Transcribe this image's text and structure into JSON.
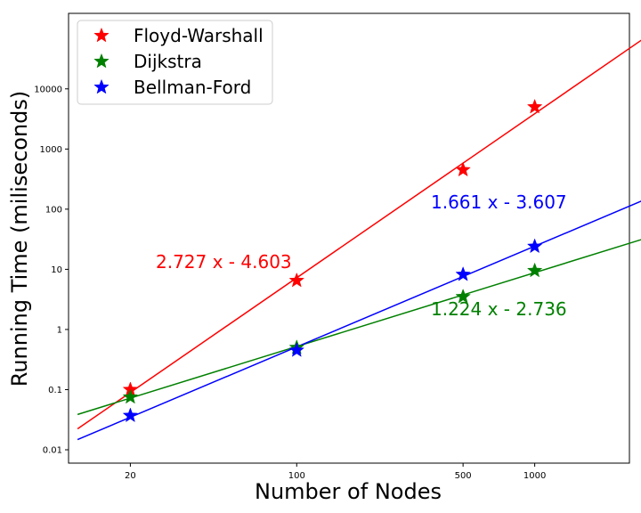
{
  "chart_data": {
    "type": "scatter",
    "xscale": "log",
    "yscale": "log",
    "xlabel": "Number of Nodes",
    "ylabel": "Running Time (miliseconds)",
    "xticks": [
      20,
      100,
      500,
      1000
    ],
    "yticks": [
      0.01,
      0.1,
      1,
      10,
      100,
      1000,
      10000
    ],
    "xlim": [
      11,
      2500
    ],
    "ylim": [
      0.006,
      180000
    ],
    "grid": false,
    "legend_position": "top-left",
    "series": [
      {
        "name": "Floyd-Warshall",
        "color": "#ff0000",
        "points": [
          {
            "x": 20,
            "y": 0.1
          },
          {
            "x": 100,
            "y": 6.5
          },
          {
            "x": 500,
            "y": 450
          },
          {
            "x": 1000,
            "y": 5000
          }
        ],
        "fit": {
          "slope": 2.727,
          "intercept": -4.603,
          "label": "2.727 x - 4.603"
        }
      },
      {
        "name": "Dijkstra",
        "color": "#008000",
        "points": [
          {
            "x": 20,
            "y": 0.075
          },
          {
            "x": 100,
            "y": 0.5
          },
          {
            "x": 500,
            "y": 3.5
          },
          {
            "x": 1000,
            "y": 9.5
          }
        ],
        "fit": {
          "slope": 1.224,
          "intercept": -2.736,
          "label": "1.224 x - 2.736"
        }
      },
      {
        "name": "Bellman-Ford",
        "color": "#0000ff",
        "points": [
          {
            "x": 20,
            "y": 0.037
          },
          {
            "x": 100,
            "y": 0.45
          },
          {
            "x": 500,
            "y": 8.2
          },
          {
            "x": 1000,
            "y": 24
          }
        ],
        "fit": {
          "slope": 1.661,
          "intercept": -3.607,
          "label": "1.661 x - 3.607"
        }
      }
    ],
    "fit_x_range": [
      12,
      3300
    ]
  }
}
